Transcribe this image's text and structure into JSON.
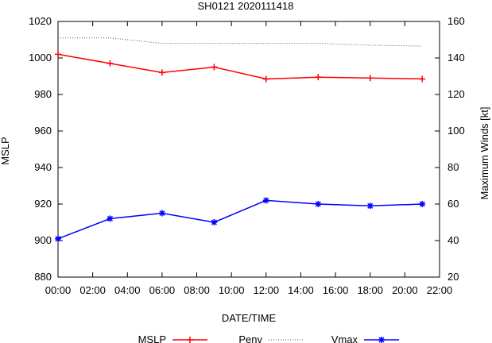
{
  "chart_data": {
    "type": "line",
    "title": "SH0121 2020111418",
    "xlabel": "DATE/TIME",
    "ylabel_left": "MSLP",
    "ylabel_right": "Maximum Winds [kt]",
    "x_tick_labels": [
      "00:00",
      "02:00",
      "04:00",
      "06:00",
      "08:00",
      "10:00",
      "12:00",
      "14:00",
      "16:00",
      "18:00",
      "20:00",
      "22:00"
    ],
    "xlim_hours": [
      0,
      22
    ],
    "y_left_ticks": [
      "880",
      "900",
      "920",
      "940",
      "960",
      "980",
      "1000",
      "1020"
    ],
    "ylim_left": [
      880,
      1020
    ],
    "y_right_ticks": [
      "20",
      "40",
      "60",
      "80",
      "100",
      "120",
      "140",
      "160"
    ],
    "ylim_right": [
      20,
      160
    ],
    "x_hours": [
      0,
      3,
      6,
      9,
      12,
      15,
      18,
      21
    ],
    "grid": false,
    "legend_placement": "bottom",
    "series": [
      {
        "name": "MSLP",
        "axis": "left",
        "color": "#ff0000",
        "marker": "plus",
        "style": "solid",
        "values": [
          1002,
          997,
          992,
          995,
          988.5,
          989.5,
          989,
          988.5
        ]
      },
      {
        "name": "Penv",
        "axis": "left",
        "color": "#555555",
        "marker": "none",
        "style": "dotted",
        "x": [
          0,
          3,
          6,
          9,
          12,
          15,
          18,
          21
        ],
        "values": [
          1011,
          1011,
          1008,
          1008,
          1008,
          1008,
          1007,
          1006.5
        ]
      },
      {
        "name": "Vmax",
        "axis": "right",
        "color": "#0000ff",
        "marker": "star",
        "style": "solid",
        "values": [
          41,
          52,
          55,
          50,
          62,
          60,
          59,
          60
        ]
      }
    ]
  }
}
